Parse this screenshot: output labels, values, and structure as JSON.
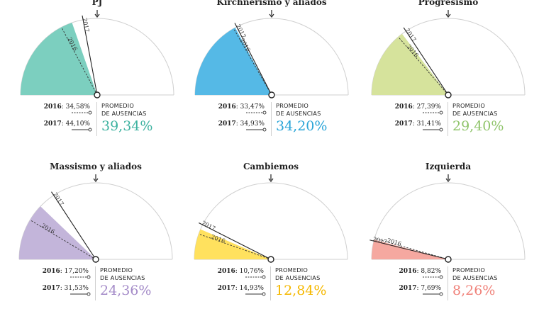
{
  "promedio_label": [
    "PROMEDIO",
    "DE AUSENCIAS"
  ],
  "chart_data": [
    {
      "type": "gauge",
      "title": "PJ",
      "color": "#7ccfbf",
      "year1": "2016",
      "value2016": 34.58,
      "label2016": "34,58%",
      "year2": "2017",
      "value2017": 44.1,
      "label2017": "44,10%",
      "average": 39.34,
      "average_label": "39,34%",
      "average_color": "#3db2a0"
    },
    {
      "type": "gauge",
      "title": "Kirchnerismo y aliados",
      "color": "#55b9e6",
      "year1": "2016",
      "value2016": 33.47,
      "label2016": "33,47%",
      "year2": "2017",
      "value2017": 34.93,
      "label2017": "34,93%",
      "average": 34.2,
      "average_label": "34,20%",
      "average_color": "#2aa5d8"
    },
    {
      "type": "gauge",
      "title": "Progresismo",
      "color": "#d6e39c",
      "year1": "2016",
      "value2016": 27.39,
      "label2016": "27,39%",
      "year2": "2017",
      "value2017": 31.41,
      "label2017": "31,41%",
      "average": 29.4,
      "average_label": "29,40%",
      "average_color": "#8fc46a"
    },
    {
      "type": "gauge",
      "title": "Massismo y aliados",
      "color": "#c3b5da",
      "year1": "2016",
      "value2016": 17.2,
      "label2016": "17,20%",
      "year2": "2017",
      "value2017": 31.53,
      "label2017": "31,53%",
      "average": 24.36,
      "average_label": "24,36%",
      "average_color": "#a48bc8"
    },
    {
      "type": "gauge",
      "title": "Cambiemos",
      "color": "#ffe15e",
      "year1": "2016",
      "value2016": 10.76,
      "label2016": "10,76%",
      "year2": "2017",
      "value2017": 14.93,
      "label2017": "14,93%",
      "average": 12.84,
      "average_label": "12,84%",
      "average_color": "#f5b800"
    },
    {
      "type": "gauge",
      "title": "Izquierda",
      "color": "#f5a8a0",
      "year1": "2016",
      "value2016": 8.82,
      "label2016": "8,82%",
      "year2": "2017",
      "value2017": 7.69,
      "label2017": "7,69%",
      "average": 8.26,
      "average_label": "8,26%",
      "average_color": "#f0827a"
    }
  ]
}
